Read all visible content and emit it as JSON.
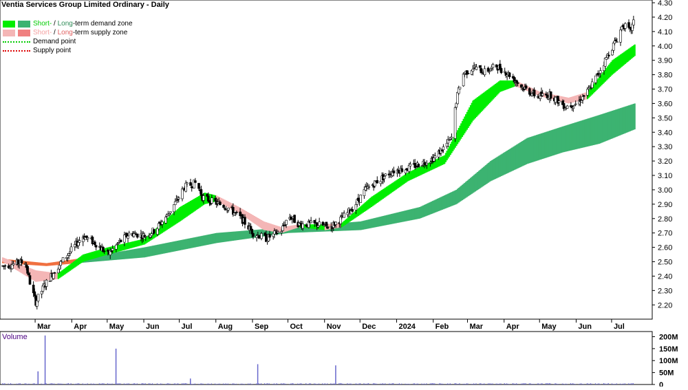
{
  "chart_data": {
    "type": "candlestick",
    "title": "Ventia Services Group Limited Ordinary - Daily",
    "legend": {
      "demand_zone": {
        "short": "Short-",
        "sep": " / ",
        "long": "Long",
        "tail": "-term demand zone"
      },
      "supply_zone": {
        "short": "Short-",
        "sep": " / ",
        "long": "Long",
        "tail": "-term supply zone"
      },
      "demand_point": "Demand point",
      "supply_point": "Supply point"
    },
    "x_labels": [
      "Mar",
      "Apr",
      "May",
      "Jun",
      "Jul",
      "Aug",
      "Sep",
      "Oct",
      "Nov",
      "Dec",
      "2024",
      "Feb",
      "Mar",
      "Apr",
      "May",
      "Jun",
      "Jul"
    ],
    "y_ticks": [
      "4.30",
      "4.20",
      "4.10",
      "4.00",
      "3.90",
      "3.80",
      "3.70",
      "3.60",
      "3.50",
      "3.40",
      "3.30",
      "3.20",
      "3.10",
      "3.00",
      "2.90",
      "2.80",
      "2.70",
      "2.60",
      "2.50",
      "2.40",
      "2.30",
      "2.20"
    ],
    "ylim": [
      2.12,
      4.3
    ],
    "volume": {
      "label": "Volume",
      "ticks": [
        "200M",
        "150M",
        "100M",
        "50M",
        "0"
      ],
      "ylim": [
        0,
        210
      ],
      "spikes_M": [
        {
          "month": "Mar",
          "value": 55
        },
        {
          "month": "Mar",
          "value": 205
        },
        {
          "month": "May",
          "value": 150
        },
        {
          "month": "Jul",
          "value": 25
        },
        {
          "month": "Sep",
          "value": 85
        },
        {
          "month": "Nov",
          "value": 80
        }
      ]
    },
    "price_path": [
      {
        "date": "2023-02-01",
        "close": 2.47
      },
      {
        "date": "2023-02-20",
        "close": 2.5
      },
      {
        "date": "2023-02-25",
        "close": 2.32
      },
      {
        "date": "2023-03-01",
        "close": 2.22
      },
      {
        "date": "2023-03-08",
        "close": 2.33
      },
      {
        "date": "2023-03-18",
        "close": 2.45
      },
      {
        "date": "2023-03-28",
        "close": 2.55
      },
      {
        "date": "2023-04-10",
        "close": 2.68
      },
      {
        "date": "2023-04-22",
        "close": 2.62
      },
      {
        "date": "2023-05-01",
        "close": 2.55
      },
      {
        "date": "2023-05-10",
        "close": 2.63
      },
      {
        "date": "2023-05-20",
        "close": 2.7
      },
      {
        "date": "2023-06-01",
        "close": 2.68
      },
      {
        "date": "2023-06-10",
        "close": 2.72
      },
      {
        "date": "2023-06-20",
        "close": 2.82
      },
      {
        "date": "2023-06-28",
        "close": 2.92
      },
      {
        "date": "2023-07-05",
        "close": 3.02
      },
      {
        "date": "2023-07-15",
        "close": 3.05
      },
      {
        "date": "2023-07-20",
        "close": 2.95
      },
      {
        "date": "2023-07-28",
        "close": 2.92
      },
      {
        "date": "2023-08-10",
        "close": 2.88
      },
      {
        "date": "2023-08-22",
        "close": 2.8
      },
      {
        "date": "2023-09-01",
        "close": 2.7
      },
      {
        "date": "2023-09-12",
        "close": 2.66
      },
      {
        "date": "2023-09-25",
        "close": 2.72
      },
      {
        "date": "2023-10-01",
        "close": 2.82
      },
      {
        "date": "2023-10-10",
        "close": 2.76
      },
      {
        "date": "2023-10-25",
        "close": 2.76
      },
      {
        "date": "2023-11-05",
        "close": 2.74
      },
      {
        "date": "2023-11-15",
        "close": 2.8
      },
      {
        "date": "2023-11-25",
        "close": 2.88
      },
      {
        "date": "2023-12-05",
        "close": 3.0
      },
      {
        "date": "2023-12-15",
        "close": 3.06
      },
      {
        "date": "2023-12-28",
        "close": 3.13
      },
      {
        "date": "2024-01-10",
        "close": 3.15
      },
      {
        "date": "2024-01-20",
        "close": 3.18
      },
      {
        "date": "2024-02-01",
        "close": 3.22
      },
      {
        "date": "2024-02-10",
        "close": 3.3
      },
      {
        "date": "2024-02-16",
        "close": 3.36
      },
      {
        "date": "2024-02-20",
        "close": 3.62
      },
      {
        "date": "2024-02-25",
        "close": 3.8
      },
      {
        "date": "2024-03-05",
        "close": 3.85
      },
      {
        "date": "2024-03-15",
        "close": 3.82
      },
      {
        "date": "2024-03-25",
        "close": 3.86
      },
      {
        "date": "2024-04-05",
        "close": 3.8
      },
      {
        "date": "2024-04-15",
        "close": 3.72
      },
      {
        "date": "2024-04-28",
        "close": 3.65
      },
      {
        "date": "2024-05-10",
        "close": 3.66
      },
      {
        "date": "2024-05-22",
        "close": 3.58
      },
      {
        "date": "2024-06-01",
        "close": 3.6
      },
      {
        "date": "2024-06-10",
        "close": 3.68
      },
      {
        "date": "2024-06-20",
        "close": 3.82
      },
      {
        "date": "2024-06-28",
        "close": 3.95
      },
      {
        "date": "2024-07-05",
        "close": 4.05
      },
      {
        "date": "2024-07-10",
        "close": 4.15
      },
      {
        "date": "2024-07-16",
        "close": 4.1
      },
      {
        "date": "2024-07-20",
        "close": 4.18
      }
    ],
    "short_term_zone": [
      {
        "date": "2023-02-01",
        "upper": 2.53,
        "lower": 2.5,
        "state": "supply"
      },
      {
        "date": "2023-03-01",
        "upper": 2.44,
        "lower": 2.36,
        "state": "supply"
      },
      {
        "date": "2023-03-20",
        "upper": 2.42,
        "lower": 2.38,
        "state": "demand"
      },
      {
        "date": "2023-04-10",
        "upper": 2.55,
        "lower": 2.5,
        "state": "demand"
      },
      {
        "date": "2023-05-01",
        "upper": 2.6,
        "lower": 2.55,
        "state": "demand"
      },
      {
        "date": "2023-06-01",
        "upper": 2.66,
        "lower": 2.62,
        "state": "demand"
      },
      {
        "date": "2023-07-01",
        "upper": 2.88,
        "lower": 2.78,
        "state": "demand"
      },
      {
        "date": "2023-07-22",
        "upper": 2.98,
        "lower": 2.9,
        "state": "demand"
      },
      {
        "date": "2023-08-01",
        "upper": 2.96,
        "lower": 2.92,
        "state": "supply"
      },
      {
        "date": "2023-08-20",
        "upper": 2.88,
        "lower": 2.84,
        "state": "supply"
      },
      {
        "date": "2023-09-10",
        "upper": 2.78,
        "lower": 2.72,
        "state": "supply"
      },
      {
        "date": "2023-09-25",
        "upper": 2.74,
        "lower": 2.7,
        "state": "supply"
      },
      {
        "date": "2023-10-10",
        "upper": 2.76,
        "lower": 2.74,
        "state": "demand"
      },
      {
        "date": "2023-11-01",
        "upper": 2.76,
        "lower": 2.72,
        "state": "supply"
      },
      {
        "date": "2023-11-15",
        "upper": 2.77,
        "lower": 2.74,
        "state": "demand"
      },
      {
        "date": "2023-12-10",
        "upper": 2.95,
        "lower": 2.88,
        "state": "demand"
      },
      {
        "date": "2024-01-10",
        "upper": 3.12,
        "lower": 3.06,
        "state": "demand"
      },
      {
        "date": "2024-02-10",
        "upper": 3.24,
        "lower": 3.18,
        "state": "demand"
      },
      {
        "date": "2024-03-05",
        "upper": 3.62,
        "lower": 3.48,
        "state": "demand"
      },
      {
        "date": "2024-03-28",
        "upper": 3.76,
        "lower": 3.68,
        "state": "demand"
      },
      {
        "date": "2024-04-10",
        "upper": 3.76,
        "lower": 3.72,
        "state": "supply"
      },
      {
        "date": "2024-05-01",
        "upper": 3.68,
        "lower": 3.65,
        "state": "supply"
      },
      {
        "date": "2024-05-25",
        "upper": 3.64,
        "lower": 3.6,
        "state": "supply"
      },
      {
        "date": "2024-06-10",
        "upper": 3.68,
        "lower": 3.63,
        "state": "demand"
      },
      {
        "date": "2024-07-01",
        "upper": 3.9,
        "lower": 3.8,
        "state": "demand"
      },
      {
        "date": "2024-07-20",
        "upper": 4.01,
        "lower": 3.93,
        "state": "demand"
      }
    ],
    "long_term_zone": [
      {
        "date": "2023-02-01",
        "upper": 2.52,
        "lower": 2.49,
        "state": "supply"
      },
      {
        "date": "2023-03-10",
        "upper": 2.49,
        "lower": 2.47,
        "state": "supply"
      },
      {
        "date": "2023-04-05",
        "upper": 2.52,
        "lower": 2.49,
        "state": "demand"
      },
      {
        "date": "2023-06-01",
        "upper": 2.6,
        "lower": 2.53,
        "state": "demand"
      },
      {
        "date": "2023-08-01",
        "upper": 2.7,
        "lower": 2.63,
        "state": "demand"
      },
      {
        "date": "2023-10-01",
        "upper": 2.74,
        "lower": 2.7,
        "state": "demand"
      },
      {
        "date": "2023-12-01",
        "upper": 2.78,
        "lower": 2.72,
        "state": "demand"
      },
      {
        "date": "2024-01-20",
        "upper": 2.88,
        "lower": 2.8,
        "state": "demand"
      },
      {
        "date": "2024-02-20",
        "upper": 3.0,
        "lower": 2.9,
        "state": "demand"
      },
      {
        "date": "2024-03-20",
        "upper": 3.2,
        "lower": 3.06,
        "state": "demand"
      },
      {
        "date": "2024-04-20",
        "upper": 3.36,
        "lower": 3.18,
        "state": "demand"
      },
      {
        "date": "2024-05-20",
        "upper": 3.44,
        "lower": 3.26,
        "state": "demand"
      },
      {
        "date": "2024-06-20",
        "upper": 3.52,
        "lower": 3.32,
        "state": "demand"
      },
      {
        "date": "2024-07-20",
        "upper": 3.6,
        "lower": 3.42,
        "state": "demand"
      }
    ],
    "colors": {
      "short_demand": "#00ee00",
      "long_demand": "#3cb371",
      "short_supply": "#f4b6b6",
      "long_supply": "#f07040",
      "demand_point": "#00cc00",
      "supply_point": "#dd0000",
      "candle": "#000000",
      "volume": "#6666cc",
      "volume_label": "#4b0082"
    }
  }
}
